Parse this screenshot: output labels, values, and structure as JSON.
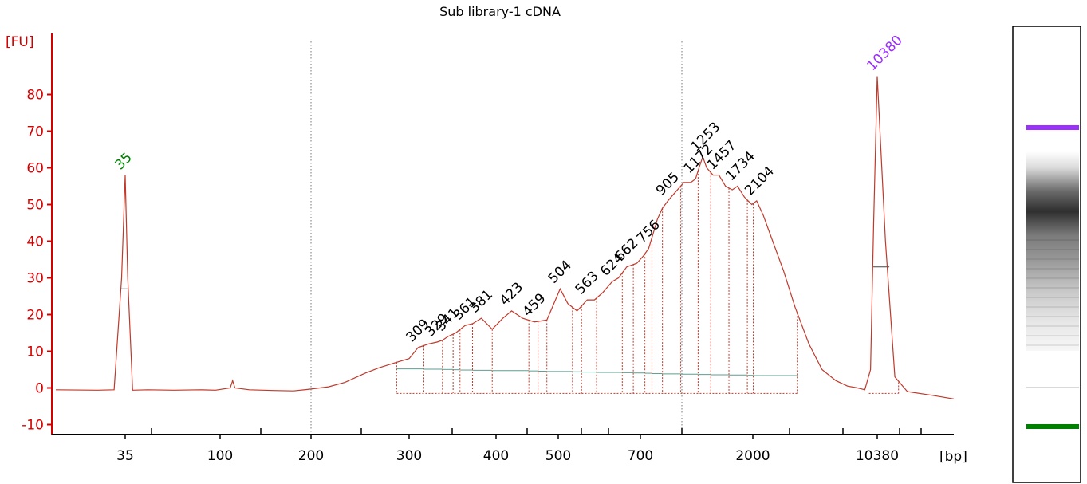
{
  "chart_data": {
    "type": "line",
    "title": "Sub library-1 cDNA",
    "ylabel": "[FU]",
    "xlabel": "[bp]",
    "ylim": [
      -12,
      95
    ],
    "yticks": [
      -10,
      0,
      10,
      20,
      30,
      40,
      50,
      60,
      70,
      80
    ],
    "xticks": [
      "35",
      "100",
      "200",
      "300",
      "400",
      "500",
      "700",
      "2000",
      "10380"
    ],
    "grid": false,
    "colors": {
      "trace": "#c0392b",
      "axis": "#d40000",
      "lower_marker": "#008000",
      "upper_marker": "#9b30ff",
      "baseline": "#5f9e8f"
    },
    "markers": [
      {
        "label": "35",
        "bp": 35,
        "fu": 58,
        "color": "#008000"
      },
      {
        "label": "10380",
        "bp": 10380,
        "fu": 85,
        "color": "#9b30ff"
      }
    ],
    "peaks": [
      {
        "label": "309",
        "bp": 309,
        "fu": 11
      },
      {
        "label": "329",
        "bp": 329,
        "fu": 12.5
      },
      {
        "label": "341",
        "bp": 341,
        "fu": 14
      },
      {
        "label": "361",
        "bp": 361,
        "fu": 17
      },
      {
        "label": "381",
        "bp": 381,
        "fu": 19
      },
      {
        "label": "423",
        "bp": 423,
        "fu": 21
      },
      {
        "label": "459",
        "bp": 459,
        "fu": 18
      },
      {
        "label": "504",
        "bp": 504,
        "fu": 27
      },
      {
        "label": "563",
        "bp": 563,
        "fu": 24
      },
      {
        "label": "624",
        "bp": 624,
        "fu": 29
      },
      {
        "label": "662",
        "bp": 662,
        "fu": 33
      },
      {
        "label": "756",
        "bp": 756,
        "fu": 38
      },
      {
        "label": "905",
        "bp": 905,
        "fu": 51
      },
      {
        "label": "1172",
        "bp": 1172,
        "fu": 57
      },
      {
        "label": "1253",
        "bp": 1253,
        "fu": 63
      },
      {
        "label": "1457",
        "bp": 1457,
        "fu": 58
      },
      {
        "label": "1734",
        "bp": 1734,
        "fu": 55
      },
      {
        "label": "2104",
        "bp": 2104,
        "fu": 51
      }
    ],
    "series": [
      {
        "values": [
          [
            20,
            -0.5
          ],
          [
            28,
            -0.6
          ],
          [
            32,
            -0.5
          ],
          [
            34,
            30
          ],
          [
            35,
            58
          ],
          [
            36,
            30
          ],
          [
            38,
            -0.6
          ],
          [
            45,
            -0.5
          ],
          [
            60,
            -0.6
          ],
          [
            80,
            -0.5
          ],
          [
            95,
            -0.6
          ],
          [
            108,
            0
          ],
          [
            110,
            2
          ],
          [
            112,
            0
          ],
          [
            125,
            -0.5
          ],
          [
            150,
            -0.7
          ],
          [
            175,
            -0.8
          ],
          [
            200,
            -0.3
          ],
          [
            215,
            0.3
          ],
          [
            230,
            1.5
          ],
          [
            250,
            4
          ],
          [
            265,
            5.5
          ],
          [
            285,
            7
          ],
          [
            300,
            8
          ],
          [
            309,
            11
          ],
          [
            320,
            12
          ],
          [
            329,
            12.5
          ],
          [
            335,
            13
          ],
          [
            341,
            14
          ],
          [
            350,
            15
          ],
          [
            361,
            17
          ],
          [
            370,
            17.5
          ],
          [
            381,
            19
          ],
          [
            395,
            16
          ],
          [
            410,
            19
          ],
          [
            423,
            21
          ],
          [
            440,
            19
          ],
          [
            459,
            18
          ],
          [
            480,
            18.5
          ],
          [
            495,
            24
          ],
          [
            504,
            27
          ],
          [
            520,
            23
          ],
          [
            540,
            21
          ],
          [
            563,
            24
          ],
          [
            580,
            24
          ],
          [
            600,
            26
          ],
          [
            624,
            29
          ],
          [
            640,
            30
          ],
          [
            662,
            33
          ],
          [
            690,
            34
          ],
          [
            720,
            36
          ],
          [
            756,
            38
          ],
          [
            780,
            41
          ],
          [
            820,
            46
          ],
          [
            860,
            49
          ],
          [
            905,
            51
          ],
          [
            960,
            53
          ],
          [
            1050,
            56
          ],
          [
            1120,
            56
          ],
          [
            1172,
            57
          ],
          [
            1210,
            60
          ],
          [
            1253,
            63
          ],
          [
            1300,
            60
          ],
          [
            1380,
            58
          ],
          [
            1457,
            58
          ],
          [
            1550,
            55
          ],
          [
            1650,
            54
          ],
          [
            1734,
            55
          ],
          [
            1850,
            52
          ],
          [
            1980,
            50
          ],
          [
            2104,
            51
          ],
          [
            2300,
            47
          ],
          [
            2600,
            40
          ],
          [
            3000,
            32
          ],
          [
            3500,
            22
          ],
          [
            4200,
            12
          ],
          [
            5000,
            5
          ],
          [
            6000,
            2
          ],
          [
            7000,
            0.5
          ],
          [
            8000,
            0
          ],
          [
            8800,
            -0.5
          ],
          [
            9500,
            5
          ],
          [
            9900,
            45
          ],
          [
            10380,
            85
          ],
          [
            10800,
            40
          ],
          [
            11300,
            3
          ],
          [
            12000,
            -1
          ],
          [
            13500,
            -2
          ],
          [
            15000,
            -3
          ]
        ]
      }
    ],
    "gel_bands": [
      {
        "label": "upper-marker",
        "fu": 85,
        "color": "#9b30ff"
      },
      {
        "label": "lower-marker",
        "fu": 58,
        "color": "#008000"
      }
    ]
  }
}
